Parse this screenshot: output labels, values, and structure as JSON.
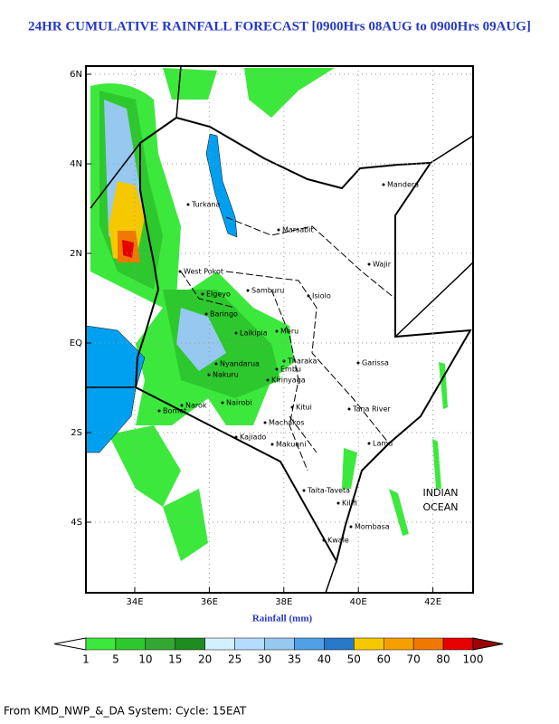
{
  "title": "24HR CUMULATIVE RAINFALL FORECAST [0900Hrs 08AUG to 0900Hrs 09AUG]",
  "map": {
    "lat_ticks": [
      {
        "value": 6,
        "label": "6N"
      },
      {
        "value": 4,
        "label": "4N"
      },
      {
        "value": 2,
        "label": "2N"
      },
      {
        "value": 0,
        "label": "EQ"
      },
      {
        "value": -2,
        "label": "2S"
      },
      {
        "value": -4,
        "label": "4S"
      }
    ],
    "lon_ticks": [
      {
        "value": 34,
        "label": "34E"
      },
      {
        "value": 36,
        "label": "36E"
      },
      {
        "value": 38,
        "label": "38E"
      },
      {
        "value": 40,
        "label": "40E"
      },
      {
        "value": 42,
        "label": "42E"
      }
    ],
    "places": [
      "Mandera",
      "Turkana",
      "Marsabit",
      "Wajir",
      "Isiolo",
      "Samburu",
      "West Pokot",
      "Elgeyo",
      "Baringo",
      "Laikipia",
      "Meru",
      "Tharaka",
      "Embu",
      "Kirinyaga",
      "Nyandarua",
      "Nakuru",
      "Narok",
      "Bomet",
      "Kitui",
      "Garissa",
      "Tana River",
      "Nairobi",
      "Machakos",
      "Kajiado",
      "Makueni",
      "Lamu",
      "Taita-Taveta",
      "Kilifi",
      "Mombasa",
      "Kwale"
    ],
    "ocean_label": [
      "INDIAN",
      "OCEAN"
    ]
  },
  "colorbar": {
    "title": "Rainfall (mm)",
    "levels": [
      1,
      5,
      10,
      15,
      20,
      25,
      30,
      35,
      40,
      50,
      60,
      70,
      80,
      100
    ],
    "colors": [
      "#ffffff",
      "#3ce83c",
      "#2dc82d",
      "#32a832",
      "#1e8c1e",
      "#d2f0ff",
      "#b4dcff",
      "#96c8f0",
      "#50a0e6",
      "#2878c8",
      "#f5c800",
      "#f5a000",
      "#f07800",
      "#e60000",
      "#a00000"
    ]
  },
  "footer": "From KMD_NWP_&_DA System: Cycle: 15EAT"
}
